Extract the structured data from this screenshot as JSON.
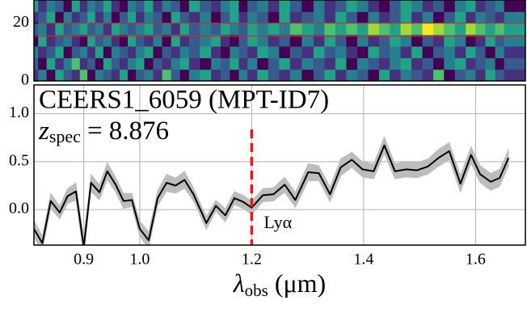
{
  "chart_data": {
    "type": "spectrum",
    "title": "CEERS1_6059 (MPT-ID7)",
    "redshift_label": {
      "symbol": "z",
      "subscript": "spec",
      "text": "= 8.876"
    },
    "xlabel": {
      "symbol": "λ",
      "subscript": "obs",
      "text": "(μm)"
    },
    "xlim": [
      0.811,
      1.689
    ],
    "xticks": [
      0.9,
      {
        "value": 1,
        "label": "1.0"
      },
      1.2,
      1.4,
      1.6
    ],
    "ylim": [
      -0.37,
      1.3
    ],
    "yticks": [
      {
        "value": 0,
        "label": "0.0"
      },
      0.5,
      {
        "value": 1,
        "label": "1.0"
      }
    ],
    "grid": true,
    "x": [
      0.811,
      0.826,
      0.841,
      0.857,
      0.871,
      0.886,
      0.9,
      0.913,
      0.928,
      0.942,
      0.957,
      0.971,
      0.986,
      1.0,
      1.016,
      1.032,
      1.048,
      1.064,
      1.08,
      1.096,
      1.119,
      1.136,
      1.153,
      1.169,
      1.185,
      1.2,
      1.22,
      1.239,
      1.259,
      1.278,
      1.301,
      1.32,
      1.34,
      1.359,
      1.379,
      1.398,
      1.418,
      1.437,
      1.456,
      1.476,
      1.495,
      1.515,
      1.534,
      1.553,
      1.573,
      1.592,
      1.608,
      1.627,
      1.643,
      1.659
    ],
    "series": [
      {
        "color": "#000000",
        "band_color": "#bdbdbd",
        "values": [
          -0.2,
          -0.35,
          0.09,
          -0.03,
          0.14,
          0.19,
          -0.39,
          0.28,
          0.18,
          0.4,
          0.26,
          0.09,
          0.1,
          -0.2,
          -0.32,
          0.12,
          0.28,
          0.25,
          0.31,
          0.16,
          -0.14,
          0.04,
          -0.06,
          0.12,
          0.08,
          0.02,
          0.15,
          0.16,
          0.26,
          0.1,
          0.39,
          0.38,
          0.16,
          0.44,
          0.52,
          0.42,
          0.4,
          0.67,
          0.4,
          0.42,
          0.41,
          0.45,
          0.54,
          0.61,
          0.27,
          0.57,
          0.37,
          0.29,
          0.33,
          0.54
        ],
        "errors": [
          0.09,
          0.08,
          0.08,
          0.07,
          0.08,
          0.09,
          0.1,
          0.09,
          0.08,
          0.09,
          0.08,
          0.08,
          0.07,
          0.08,
          0.09,
          0.08,
          0.09,
          0.08,
          0.09,
          0.07,
          0.07,
          0.06,
          0.07,
          0.07,
          0.07,
          0.07,
          0.07,
          0.07,
          0.08,
          0.08,
          0.09,
          0.08,
          0.08,
          0.09,
          0.08,
          0.08,
          0.08,
          0.09,
          0.08,
          0.08,
          0.08,
          0.08,
          0.09,
          0.09,
          0.09,
          0.09,
          0.09,
          0.09,
          0.09,
          0.09
        ]
      }
    ],
    "annotations": [
      {
        "text": "Lyα",
        "x": 1.2,
        "color": "#e8191c"
      }
    ],
    "spectrum_2d": {
      "ylim": [
        0,
        28
      ],
      "yticks": [
        0,
        20
      ],
      "colormap": "viridis",
      "aperture": [
        15.5,
        20
      ],
      "aperture_color": "#d62728",
      "z": [
        [
          3,
          5,
          2,
          6,
          4,
          3,
          7,
          2,
          5,
          4,
          3,
          6,
          2,
          4,
          5,
          3,
          7,
          4,
          2,
          5,
          6,
          3,
          4,
          2,
          5,
          3,
          6,
          4,
          3,
          5,
          2,
          4,
          6,
          3,
          5,
          4,
          2,
          6,
          3,
          5,
          4,
          3,
          7,
          2,
          4,
          5,
          3,
          6,
          4,
          3
        ],
        [
          4,
          2,
          6,
          3,
          5,
          7,
          3,
          4,
          2,
          6,
          4,
          3,
          5,
          6,
          2,
          4,
          3,
          5,
          6,
          3,
          2,
          5,
          4,
          6,
          3,
          5,
          2,
          4,
          6,
          3,
          5,
          4,
          3,
          6,
          2,
          5,
          4,
          3,
          5,
          6,
          3,
          4,
          2,
          5,
          6,
          3,
          4,
          5,
          2,
          4
        ],
        [
          5,
          3,
          4,
          6,
          2,
          4,
          5,
          3,
          6,
          2,
          5,
          4,
          3,
          5,
          6,
          2,
          4,
          3,
          5,
          4,
          6,
          3,
          2,
          5,
          4,
          3,
          6,
          5,
          2,
          4,
          3,
          6,
          4,
          5,
          3,
          2,
          6,
          4,
          5,
          3,
          6,
          2,
          4,
          5,
          3,
          6,
          4,
          2,
          5,
          3
        ],
        [
          2,
          6,
          3,
          4,
          5,
          3,
          2,
          6,
          4,
          5,
          3,
          2,
          6,
          4,
          3,
          5,
          2,
          6,
          3,
          4,
          5,
          6,
          3,
          2,
          4,
          6,
          5,
          3,
          4,
          2,
          5,
          3,
          6,
          4,
          2,
          5,
          3,
          4,
          6,
          5,
          2,
          4,
          3,
          6,
          5,
          2,
          3,
          6,
          4,
          5
        ],
        [
          4,
          5,
          3,
          6,
          4,
          5,
          6,
          4,
          5,
          3,
          6,
          5,
          4,
          5,
          6,
          4,
          5,
          3,
          6,
          4,
          5,
          4,
          6,
          5,
          4,
          6,
          5,
          6,
          5,
          7,
          6,
          5,
          7,
          6,
          7,
          6,
          8,
          7,
          6,
          8,
          7,
          9,
          8,
          7,
          6,
          8,
          7,
          6,
          7,
          6
        ],
        [
          3,
          4,
          6,
          2,
          5,
          3,
          4,
          6,
          3,
          5,
          2,
          4,
          6,
          3,
          5,
          4,
          2,
          6,
          4,
          3,
          5,
          2,
          4,
          6,
          3,
          5,
          4,
          2,
          6,
          3,
          4,
          5,
          3,
          6,
          4,
          2,
          5,
          3,
          4,
          6,
          3,
          5,
          2,
          4,
          6,
          3,
          5,
          4,
          3,
          5
        ],
        [
          6,
          3,
          5,
          4,
          2,
          6,
          3,
          5,
          4,
          6,
          3,
          2,
          5,
          4,
          6,
          3,
          5,
          4,
          2,
          6,
          4,
          3,
          5,
          6,
          2,
          4,
          5,
          3,
          6,
          4,
          2,
          5,
          3,
          4,
          6,
          5,
          3,
          2,
          4,
          6,
          5,
          3,
          4,
          2,
          5,
          6,
          3,
          4,
          5,
          2
        ]
      ]
    }
  }
}
